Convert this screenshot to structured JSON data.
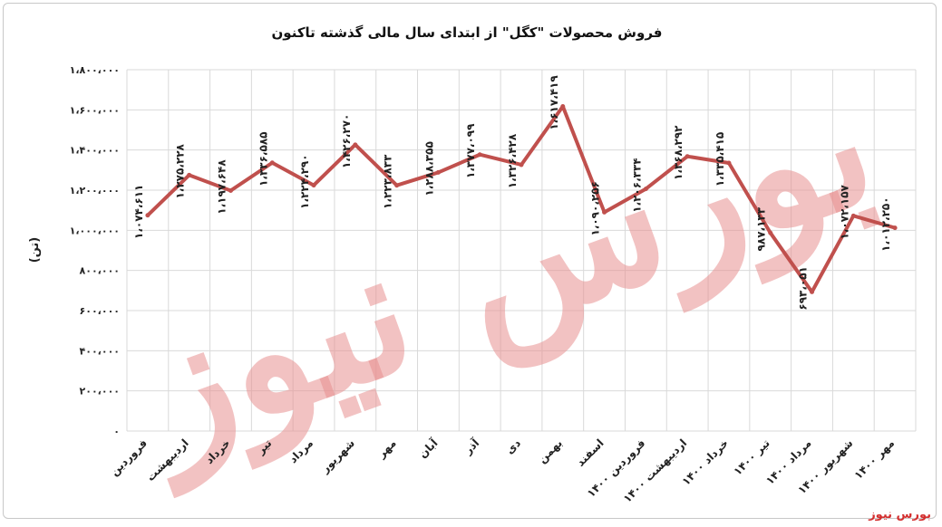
{
  "chart_data": {
    "type": "line",
    "title": "فروش محصولات \"کگل\" از ابتدای سال مالی گذشته تاکنون",
    "ylabel": "(تن)",
    "ylim": [
      0,
      1800000
    ],
    "yticks": [
      0,
      200000,
      400000,
      600000,
      800000,
      1000000,
      1200000,
      1400000,
      1600000,
      1800000
    ],
    "ytick_labels": [
      "۰",
      "۲۰۰،۰۰۰",
      "۴۰۰،۰۰۰",
      "۶۰۰،۰۰۰",
      "۸۰۰،۰۰۰",
      "۱،۰۰۰،۰۰۰",
      "۱،۲۰۰،۰۰۰",
      "۱،۴۰۰،۰۰۰",
      "۱،۶۰۰،۰۰۰",
      "۱،۸۰۰،۰۰۰"
    ],
    "grid": true,
    "categories": [
      "فروردین",
      "اردیبهشت",
      "خرداد",
      "تیر",
      "مرداد",
      "شهریور",
      "مهر",
      "آبان",
      "آذر",
      "دی",
      "بهمن",
      "اسفند",
      "فروردین ۱۴۰۰",
      "اردیبهشت ۱۴۰۰",
      "خرداد ۱۴۰۰",
      "تیر ۱۴۰۰",
      "مرداد ۱۴۰۰",
      "شهریور ۱۴۰۰",
      "مهر ۱۴۰۰"
    ],
    "series": [
      {
        "color": "#c0504d",
        "values": [
          1074611,
          1275228,
          1197648,
          1336585,
          1224290,
          1426270,
          1223833,
          1288355,
          1377099,
          1326428,
          1617419,
          1090256,
          1206334,
          1368292,
          1335415,
          987133,
          693051,
          1072157,
          1012250
        ],
        "labels": [
          "۱،۰۷۴،۶۱۱",
          "۱،۲۷۵،۲۲۸",
          "۱،۱۹۷،۶۴۸",
          "۱،۳۳۶،۵۸۵",
          "۱،۲۲۴،۲۹۰",
          "۱،۴۲۶،۲۷۰",
          "۱،۲۲۳،۸۳۳",
          "۱،۲۸۸،۳۵۵",
          "۱،۳۷۷،۰۹۹",
          "۱،۳۲۶،۴۲۸",
          "۱،۶۱۷،۴۱۹",
          "۱،۰۹۰،۲۵۶",
          "۱،۲۰۶،۳۳۴",
          "۱،۳۶۸،۲۹۲",
          "۱،۳۳۵،۴۱۵",
          "۹۸۷،۱۳۳",
          "۶۹۳،۰۵۱",
          "۱،۰۷۲،۱۵۷",
          "۱،۰۱۲،۲۵۰"
        ]
      }
    ]
  },
  "watermark": "بورس نیوز",
  "source_label": "بورس نیوز"
}
